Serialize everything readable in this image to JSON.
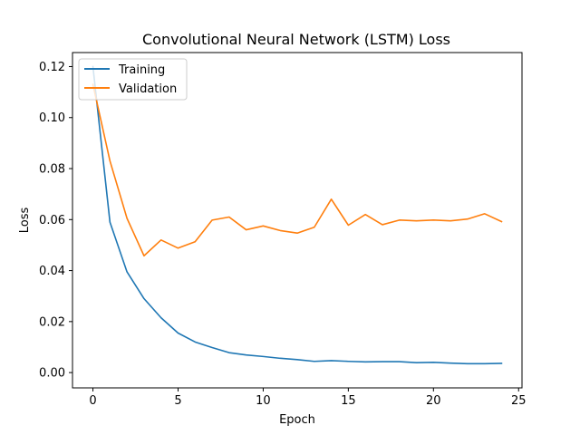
{
  "chart_data": {
    "type": "line",
    "title": "Convolutional Neural Network (LSTM) Loss",
    "xlabel": "Epoch",
    "ylabel": "Loss",
    "xlim": [
      -1.2,
      25.2
    ],
    "ylim": [
      -0.006,
      0.1255
    ],
    "xticks": [
      0,
      5,
      10,
      15,
      20,
      25
    ],
    "yticks": [
      0.0,
      0.02,
      0.04,
      0.06,
      0.08,
      0.1,
      0.12
    ],
    "ytick_labels": [
      "0.00",
      "0.02",
      "0.04",
      "0.06",
      "0.08",
      "0.10",
      "0.12"
    ],
    "grid": false,
    "legend_position": "top-left",
    "x": [
      0,
      1,
      2,
      3,
      4,
      5,
      6,
      7,
      8,
      9,
      10,
      11,
      12,
      13,
      14,
      15,
      16,
      17,
      18,
      19,
      20,
      21,
      22,
      23,
      24
    ],
    "series": [
      {
        "name": "Training",
        "color": "#1f77b4",
        "values": [
          0.12,
          0.059,
          0.0395,
          0.029,
          0.0215,
          0.0155,
          0.012,
          0.0098,
          0.0078,
          0.0069,
          0.0063,
          0.0056,
          0.0051,
          0.0044,
          0.0047,
          0.0044,
          0.0042,
          0.0043,
          0.0043,
          0.0039,
          0.004,
          0.0037,
          0.0035,
          0.0035,
          0.0036
        ]
      },
      {
        "name": "Validation",
        "color": "#ff7f0e",
        "values": [
          0.113,
          0.083,
          0.0605,
          0.0458,
          0.052,
          0.0488,
          0.0513,
          0.0598,
          0.061,
          0.056,
          0.0575,
          0.0557,
          0.0547,
          0.057,
          0.068,
          0.0578,
          0.062,
          0.058,
          0.0598,
          0.0595,
          0.0598,
          0.0595,
          0.0602,
          0.0623,
          0.0592
        ]
      }
    ]
  }
}
